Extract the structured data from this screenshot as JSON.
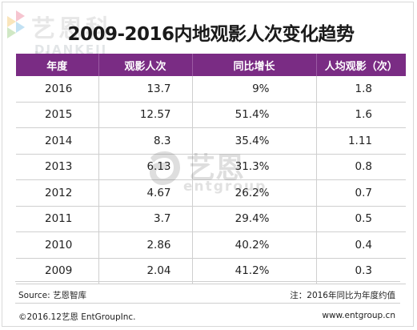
{
  "logo": {
    "text_cn": "艺恩科技",
    "text_en": "DIANKEJI"
  },
  "title": "2009-2016内地观影人次变化趋势",
  "table": {
    "headers": [
      "年度",
      "观影人次",
      "同比增长",
      "人均观影（次）"
    ],
    "rows": [
      [
        "2016",
        "13.7",
        "9%",
        "1.8"
      ],
      [
        "2015",
        "12.57",
        "51.4%",
        "1.6"
      ],
      [
        "2014",
        "8.3",
        "35.4%",
        "1.11"
      ],
      [
        "2013",
        "6.13",
        "31.3%",
        "0.8"
      ],
      [
        "2012",
        "4.67",
        "26.2%",
        "0.7"
      ],
      [
        "2011",
        "3.7",
        "29.4%",
        "0.5"
      ],
      [
        "2010",
        "2.86",
        "40.2%",
        "0.4"
      ],
      [
        "2009",
        "2.04",
        "41.2%",
        "0.3"
      ]
    ]
  },
  "watermark": {
    "text_cn": "艺恩",
    "text_en": "entgroup"
  },
  "footer": {
    "source": "Source: 艺恩智库",
    "note": "注：2016年同比为年度约值",
    "copyright": "©2016.12艺恩 EntGroupInc.",
    "site": "www.entgroup.cn"
  },
  "colors": {
    "header_bg": "#7a2c84",
    "header_text": "#ffffff",
    "grid": "#cfcfcf"
  }
}
